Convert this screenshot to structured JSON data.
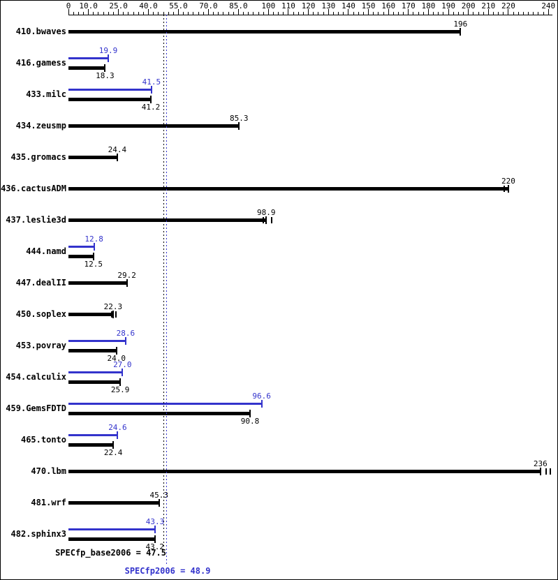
{
  "chart_data": {
    "type": "bar",
    "orientation": "horizontal",
    "title": "",
    "legend_position": "none",
    "grid": false,
    "axis": {
      "position": "top",
      "min": 0,
      "max": 242,
      "minor_tick_step": 2.5,
      "major_ticks": [
        {
          "value": 0,
          "label": "0"
        },
        {
          "value": 10,
          "label": "10.0"
        },
        {
          "value": 25,
          "label": "25.0"
        },
        {
          "value": 40,
          "label": "40.0"
        },
        {
          "value": 55,
          "label": "55.0"
        },
        {
          "value": 70,
          "label": "70.0"
        },
        {
          "value": 85,
          "label": "85.0"
        },
        {
          "value": 100,
          "label": "100"
        },
        {
          "value": 110,
          "label": "110"
        },
        {
          "value": 120,
          "label": "120"
        },
        {
          "value": 130,
          "label": "130"
        },
        {
          "value": 140,
          "label": "140"
        },
        {
          "value": 150,
          "label": "150"
        },
        {
          "value": 160,
          "label": "160"
        },
        {
          "value": 170,
          "label": "170"
        },
        {
          "value": 180,
          "label": "180"
        },
        {
          "value": 190,
          "label": "190"
        },
        {
          "value": 200,
          "label": "200"
        },
        {
          "value": 210,
          "label": "210"
        },
        {
          "value": 220,
          "label": "220"
        },
        {
          "value": 240,
          "label": "240"
        }
      ]
    },
    "series_colors": {
      "base": "#000000",
      "peak": "#3333cc"
    },
    "benchmarks": [
      {
        "name": "410.bwaves",
        "base": 196,
        "base_label": "196",
        "peak": null
      },
      {
        "name": "416.gamess",
        "base": 18.3,
        "base_label": "18.3",
        "peak": 19.9,
        "peak_label": "19.9"
      },
      {
        "name": "433.milc",
        "base": 41.2,
        "base_label": "41.2",
        "peak": 41.5,
        "peak_label": "41.5"
      },
      {
        "name": "434.zeusmp",
        "base": 85.3,
        "base_label": "85.3",
        "peak": null
      },
      {
        "name": "435.gromacs",
        "base": 24.4,
        "base_label": "24.4",
        "peak": null
      },
      {
        "name": "436.cactusADM",
        "base": 220,
        "base_label": "220",
        "peak": null,
        "base_run_marks": [
          218
        ]
      },
      {
        "name": "437.leslie3d",
        "base": 98.9,
        "base_label": "98.9",
        "peak": null,
        "base_run_marks": [
          97.5,
          101.5
        ]
      },
      {
        "name": "444.namd",
        "base": 12.5,
        "base_label": "12.5",
        "peak": 12.8,
        "peak_label": "12.8"
      },
      {
        "name": "447.dealII",
        "base": 29.2,
        "base_label": "29.2",
        "peak": null
      },
      {
        "name": "450.soplex",
        "base": 22.3,
        "base_label": "22.3",
        "peak": null,
        "base_run_marks": [
          21.7,
          23.8
        ]
      },
      {
        "name": "453.povray",
        "base": 24.0,
        "base_label": "24.0",
        "peak": 28.6,
        "peak_label": "28.6"
      },
      {
        "name": "454.calculix",
        "base": 25.9,
        "base_label": "25.9",
        "peak": 27.0,
        "peak_label": "27.0"
      },
      {
        "name": "459.GemsFDTD",
        "base": 90.8,
        "base_label": "90.8",
        "peak": 96.6,
        "peak_label": "96.6"
      },
      {
        "name": "465.tonto",
        "base": 22.4,
        "base_label": "22.4",
        "peak": 24.6,
        "peak_label": "24.6"
      },
      {
        "name": "470.lbm",
        "base": 236,
        "base_label": "236",
        "peak": null,
        "base_run_marks": [
          239,
          241
        ]
      },
      {
        "name": "481.wrf",
        "base": 45.3,
        "base_label": "45.3",
        "peak": null
      },
      {
        "name": "482.sphinx3",
        "base": 43.2,
        "base_label": "43.2",
        "peak": 43.3,
        "peak_label": "43.3"
      }
    ],
    "reference_lines": [
      {
        "name": "base",
        "value": 47.5,
        "label": "SPECfp_base2006 = 47.5",
        "color": "#000000"
      },
      {
        "name": "peak",
        "value": 48.9,
        "label": "SPECfp2006 = 48.9",
        "color": "#3333cc"
      }
    ]
  }
}
